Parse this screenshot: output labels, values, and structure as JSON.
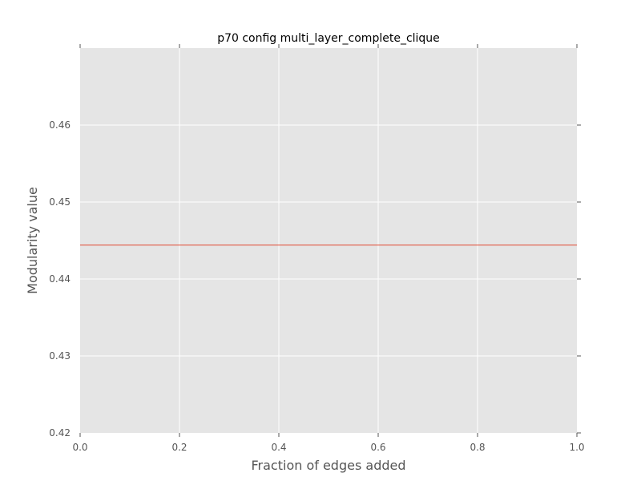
{
  "chart_data": {
    "type": "line",
    "title": "p70 config multi_layer_complete_clique",
    "xlabel": "Fraction of edges added",
    "ylabel": "Modularity value",
    "xlim": [
      0.0,
      1.0
    ],
    "ylim": [
      0.42,
      0.47
    ],
    "x_ticks": [
      "0.0",
      "0.2",
      "0.4",
      "0.6",
      "0.8",
      "1.0"
    ],
    "y_ticks": [
      "0.42",
      "0.43",
      "0.44",
      "0.45",
      "0.46"
    ],
    "grid": true,
    "series": [
      {
        "x": [
          0.0,
          0.2,
          0.4,
          0.6,
          0.8,
          1.0
        ],
        "values": [
          0.4444,
          0.4444,
          0.4444,
          0.4444,
          0.4444,
          0.4444
        ],
        "color": "#e24a33"
      }
    ],
    "colors": {
      "plot_bg": "#e5e5e5",
      "grid": "#ffffff",
      "line": "#e24a33"
    }
  }
}
